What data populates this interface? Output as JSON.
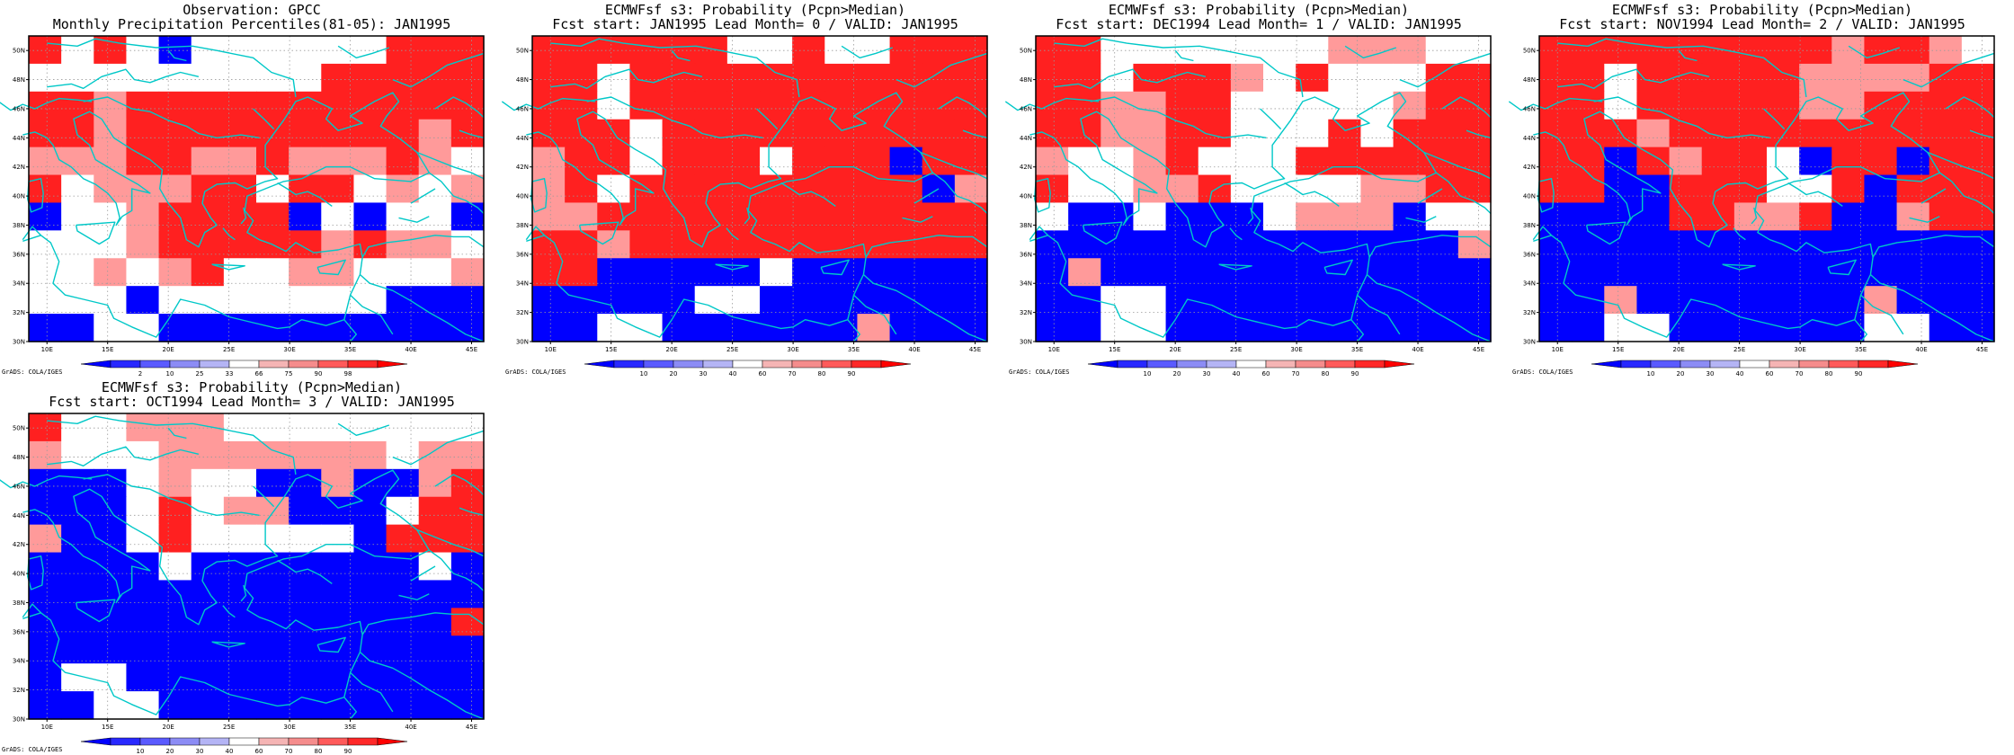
{
  "page": {
    "background": "#ffffff"
  },
  "lon_ticks": [
    "10E",
    "15E",
    "20E",
    "25E",
    "30E",
    "35E",
    "40E",
    "45E"
  ],
  "lat_ticks": [
    "30N",
    "32N",
    "34N",
    "36N",
    "38N",
    "40N",
    "42N",
    "44N",
    "46N",
    "48N",
    "50N"
  ],
  "coast_color": "#00c8c8",
  "grid_color": "#9a9a9a",
  "credit": "GrADS: COLA/IGES",
  "legend_probability": {
    "labels": [
      "10",
      "20",
      "30",
      "40",
      "60",
      "70",
      "80",
      "90"
    ],
    "colors": [
      "#0000ff",
      "#2828ff",
      "#5a5aff",
      "#8c8cf5",
      "#b4b4f5",
      "#ffffff",
      "#f5b4b4",
      "#f58c8c",
      "#ff5a5a",
      "#ff2828",
      "#ff0000"
    ]
  },
  "legend_percentile": {
    "labels": [
      "2",
      "10",
      "25",
      "33",
      "66",
      "75",
      "90",
      "98"
    ],
    "colors": [
      "#0000ff",
      "#2828ff",
      "#5a5aff",
      "#8c8cf5",
      "#b4b4f5",
      "#ffffff",
      "#f5b4b4",
      "#f58c8c",
      "#ff5a5a",
      "#ff2828",
      "#ff0000"
    ]
  },
  "panels": [
    {
      "title1": "Observation: GPCC",
      "title2": "Monthly Precipitation Percentiles(81-05): JAN1995",
      "legend": "percentile",
      "grid": [
        "rwrwbwwwwwwrrr",
        "wwwwwwwwwrrrrr",
        "rrprrrrrrrrrrr",
        "rrprrrrrrrrrpr",
        "ppprrpprppprpw",
        "rwppprrwrrwpwp",
        "bwwprrrrbwbwwb",
        "wwwprrrrrprppw",
        "wwpwprwwppwwwp",
        "wwwbwwwwwwwbbb",
        "bbwwbbbbbbbbbb"
      ]
    },
    {
      "title1": "ECMWFsf s3: Probability (Pcpn>Median)",
      "title2": "Fcst start: JAN1995  Lead Month= 0 / VALID: JAN1995",
      "legend": "probability",
      "grid": [
        "rrrrrrwwrwwrrr",
        "rrwrrrrrrrrrrr",
        "rrwrrrrrrrrrrr",
        "rrrwrrrrrrrrrr",
        "prrwrrrwrrrbrr",
        "prwrrrrrrrrrbp",
        "pprrrrrrrrrrrr",
        "rrprrrrrrrrrrr",
        "rrbbbbbwbbbbbb",
        "bbbbbwwbbbbbbb",
        "bbwwbbbbbbpbbb"
      ]
    },
    {
      "title1": "ECMWFsf s3: Probability (Pcpn>Median)",
      "title2": "Fcst start: DEC1994  Lead Month= 1 / VALID: JAN1995",
      "legend": "probability",
      "grid": [
        "rrwwwwwwwpppww",
        "rrwrrrpwrwwwrr",
        "rrpprrwwwwwprr",
        "rrpprrwwwrwrrr",
        "pwwprwwwrrrrrr",
        "rwwpprwwwwpprr",
        "wbbwbbbwpppbww",
        "bbbbbbbbbbbbbp",
        "bpbbbbbbbbbbbb",
        "bbwwbbbbbbbbbb",
        "bbwwbbbbbbbbbb"
      ]
    },
    {
      "title1": "ECMWFsf s3: Probability (Pcpn>Median)",
      "title2": "Fcst start: NOV1994  Lead Month= 2 / VALID: JAN1995",
      "legend": "probability",
      "grid": [
        "rrrrrrrrrprrpw",
        "rrwrrrrrpppprr",
        "rrwrrrrrpprrrr",
        "rrrprrrrrrrrrr",
        "rrbrprrwbrrbrr",
        "rrbbrrrwwrbrrr",
        "bbbbrrpprbbprr",
        "bbbbbbbbbbbbbb",
        "bbbbbbbbbbbbbb",
        "bbpbbbbbbbpbbb",
        "bbwwbbbbbbwwbb"
      ]
    },
    {
      "title1": "ECMWFsf s3: Probability (Pcpn>Median)",
      "title2": "Fcst start: OCT1994  Lead Month= 3 / VALID: JAN1995",
      "legend": "probability",
      "grid": [
        "rwwpppwwwwwwww",
        "pwwwpppppppwpp",
        "bbbwpwwbbpbbpr",
        "bbbwrwppbbbwrr",
        "pbbwrwwwwwbrrr",
        "bbbbwbbbbbbbwb",
        "bbbbbbbbbbbbbb",
        "bbbbbbbbbbbbbr",
        "bbbbbbbbbbbbbb",
        "bwwbbbbbbbbbbb",
        "bbwwbbbbbbbbbb"
      ]
    }
  ],
  "colors": {
    "r": "#ff2020",
    "p": "#ff9a9a",
    "w": "#ffffff",
    "b": "#0000ff",
    "l": "#9a9af5"
  }
}
